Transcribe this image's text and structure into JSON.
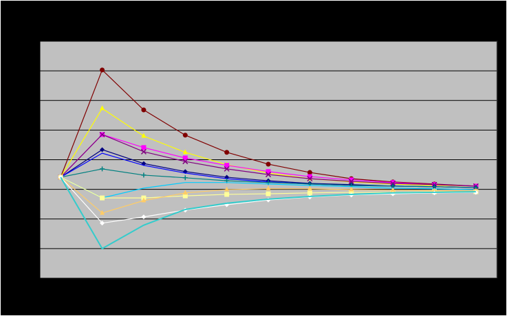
{
  "chart_data": {
    "type": "line",
    "categories": [
      null,
      null,
      null,
      null,
      null,
      null,
      null,
      null,
      null,
      null,
      null
    ],
    "ylim": [
      0,
      8
    ],
    "yticks": [
      0,
      1,
      2,
      3,
      4,
      5,
      6,
      7,
      8
    ],
    "grid": true,
    "show_tick_labels": false,
    "series": [
      {
        "color": "#800000",
        "marker": "circle",
        "values": [
          3.41,
          7.03,
          5.68,
          4.83,
          4.25,
          3.85,
          3.57,
          3.36,
          3.25,
          3.18,
          3.11
        ]
      },
      {
        "color": "#ffff00",
        "marker": "triangle",
        "values": [
          3.41,
          5.73,
          4.8,
          4.25,
          3.83,
          3.55,
          3.36,
          3.25,
          3.18,
          3.13,
          3.11
        ]
      },
      {
        "color": "#ff00ff",
        "marker": "square",
        "values": [
          3.41,
          4.85,
          4.41,
          4.06,
          3.81,
          3.6,
          3.43,
          3.32,
          3.23,
          3.16,
          3.11
        ]
      },
      {
        "color": "#800080",
        "marker": "x",
        "values": [
          3.41,
          4.85,
          4.27,
          3.94,
          3.69,
          3.5,
          3.36,
          3.27,
          3.2,
          3.16,
          3.11
        ]
      },
      {
        "color": "#000080",
        "marker": "diamond",
        "values": [
          3.41,
          4.34,
          3.87,
          3.6,
          3.41,
          3.29,
          3.2,
          3.16,
          3.11,
          3.09,
          3.06
        ]
      },
      {
        "color": "#0000ff",
        "marker": "none",
        "values": [
          3.41,
          4.22,
          3.81,
          3.55,
          3.36,
          3.25,
          3.18,
          3.13,
          3.11,
          3.09,
          3.06
        ]
      },
      {
        "color": "#008080",
        "marker": "plus",
        "values": [
          3.41,
          3.69,
          3.48,
          3.39,
          3.29,
          3.23,
          3.18,
          3.13,
          3.11,
          3.09,
          3.06
        ]
      },
      {
        "color": "#00ccff",
        "marker": "none",
        "values": [
          3.41,
          2.71,
          3.04,
          3.23,
          3.23,
          3.18,
          3.13,
          3.09,
          3.04,
          3.02,
          2.99
        ]
      },
      {
        "color": "#ffff99",
        "marker": "square",
        "values": [
          3.41,
          2.71,
          2.71,
          2.78,
          2.83,
          2.85,
          2.88,
          2.9,
          2.9,
          2.92,
          2.92
        ]
      },
      {
        "color": "#ffcc66",
        "marker": "triangle",
        "values": [
          3.41,
          2.2,
          2.62,
          2.88,
          2.99,
          3.02,
          3.02,
          2.99,
          2.97,
          2.95,
          2.95
        ]
      },
      {
        "color": "#ffffff",
        "marker": "diamond",
        "values": [
          3.41,
          1.86,
          2.07,
          2.3,
          2.48,
          2.64,
          2.74,
          2.81,
          2.85,
          2.88,
          2.9
        ]
      },
      {
        "color": "#33cccc",
        "marker": "none",
        "width": 2,
        "values": [
          3.41,
          1.0,
          1.79,
          2.32,
          2.53,
          2.67,
          2.76,
          2.83,
          2.88,
          2.9,
          2.92
        ]
      }
    ]
  }
}
